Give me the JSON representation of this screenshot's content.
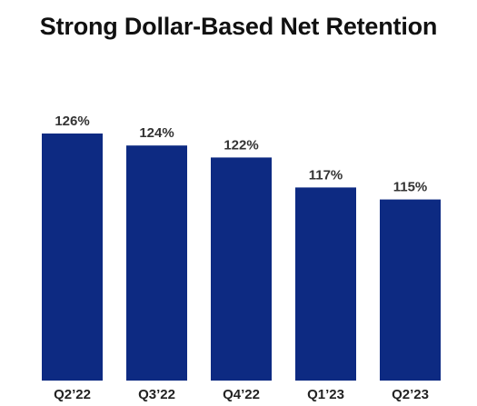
{
  "chart_data": {
    "type": "bar",
    "title": "Strong Dollar-Based Net Retention",
    "categories": [
      "Q2’22",
      "Q3’22",
      "Q4’22",
      "Q1’23",
      "Q2’23"
    ],
    "values": [
      126,
      124,
      122,
      117,
      115
    ],
    "value_labels": [
      "126%",
      "124%",
      "122%",
      "117%",
      "115%"
    ],
    "xlabel": "",
    "ylabel": "",
    "grid": false,
    "legend": "none",
    "colors": {
      "bar": "#0d2a82",
      "label_text": "#333333",
      "category_text": "#222222",
      "title_text": "#111111"
    }
  }
}
